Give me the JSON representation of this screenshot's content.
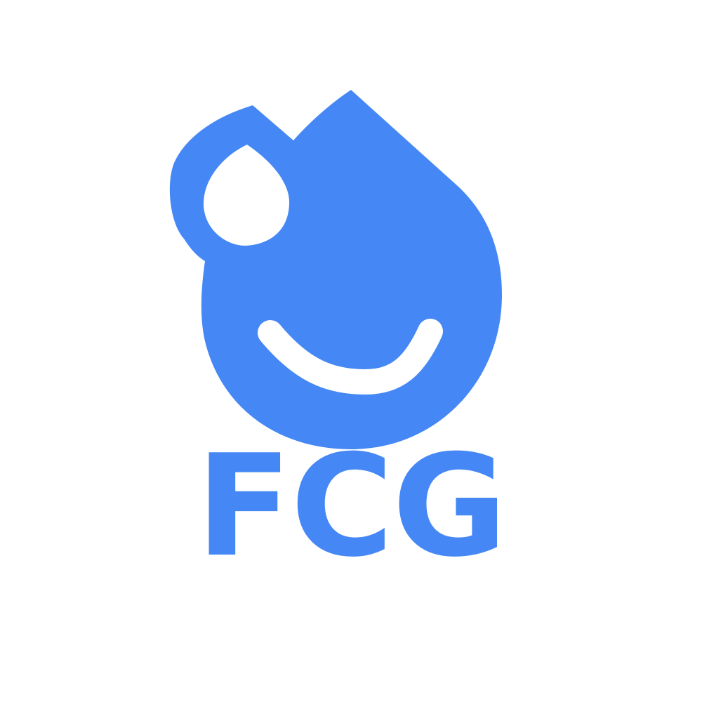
{
  "logo": {
    "brand_color": "#4588F5",
    "background_color": "#FFFFFF",
    "icon": "smiling-water-drop-icon",
    "wordmark": "FCG"
  }
}
